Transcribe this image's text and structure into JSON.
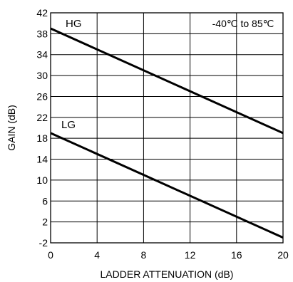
{
  "chart_data": {
    "type": "line",
    "xlabel": "LADDER ATTENUATION (dB)",
    "ylabel": "GAIN (dB)",
    "xlim": [
      0,
      20
    ],
    "ylim": [
      -2,
      42
    ],
    "xticks": [
      0,
      4,
      8,
      12,
      16,
      20
    ],
    "yticks": [
      -2,
      2,
      6,
      10,
      14,
      18,
      22,
      26,
      30,
      34,
      38,
      42
    ],
    "grid": true,
    "annotation": "-40℃ to 85℃",
    "series": [
      {
        "name": "HG",
        "x": [
          0,
          20
        ],
        "y": [
          39,
          19
        ]
      },
      {
        "name": "LG",
        "x": [
          0,
          20
        ],
        "y": [
          19,
          -1
        ]
      }
    ]
  }
}
